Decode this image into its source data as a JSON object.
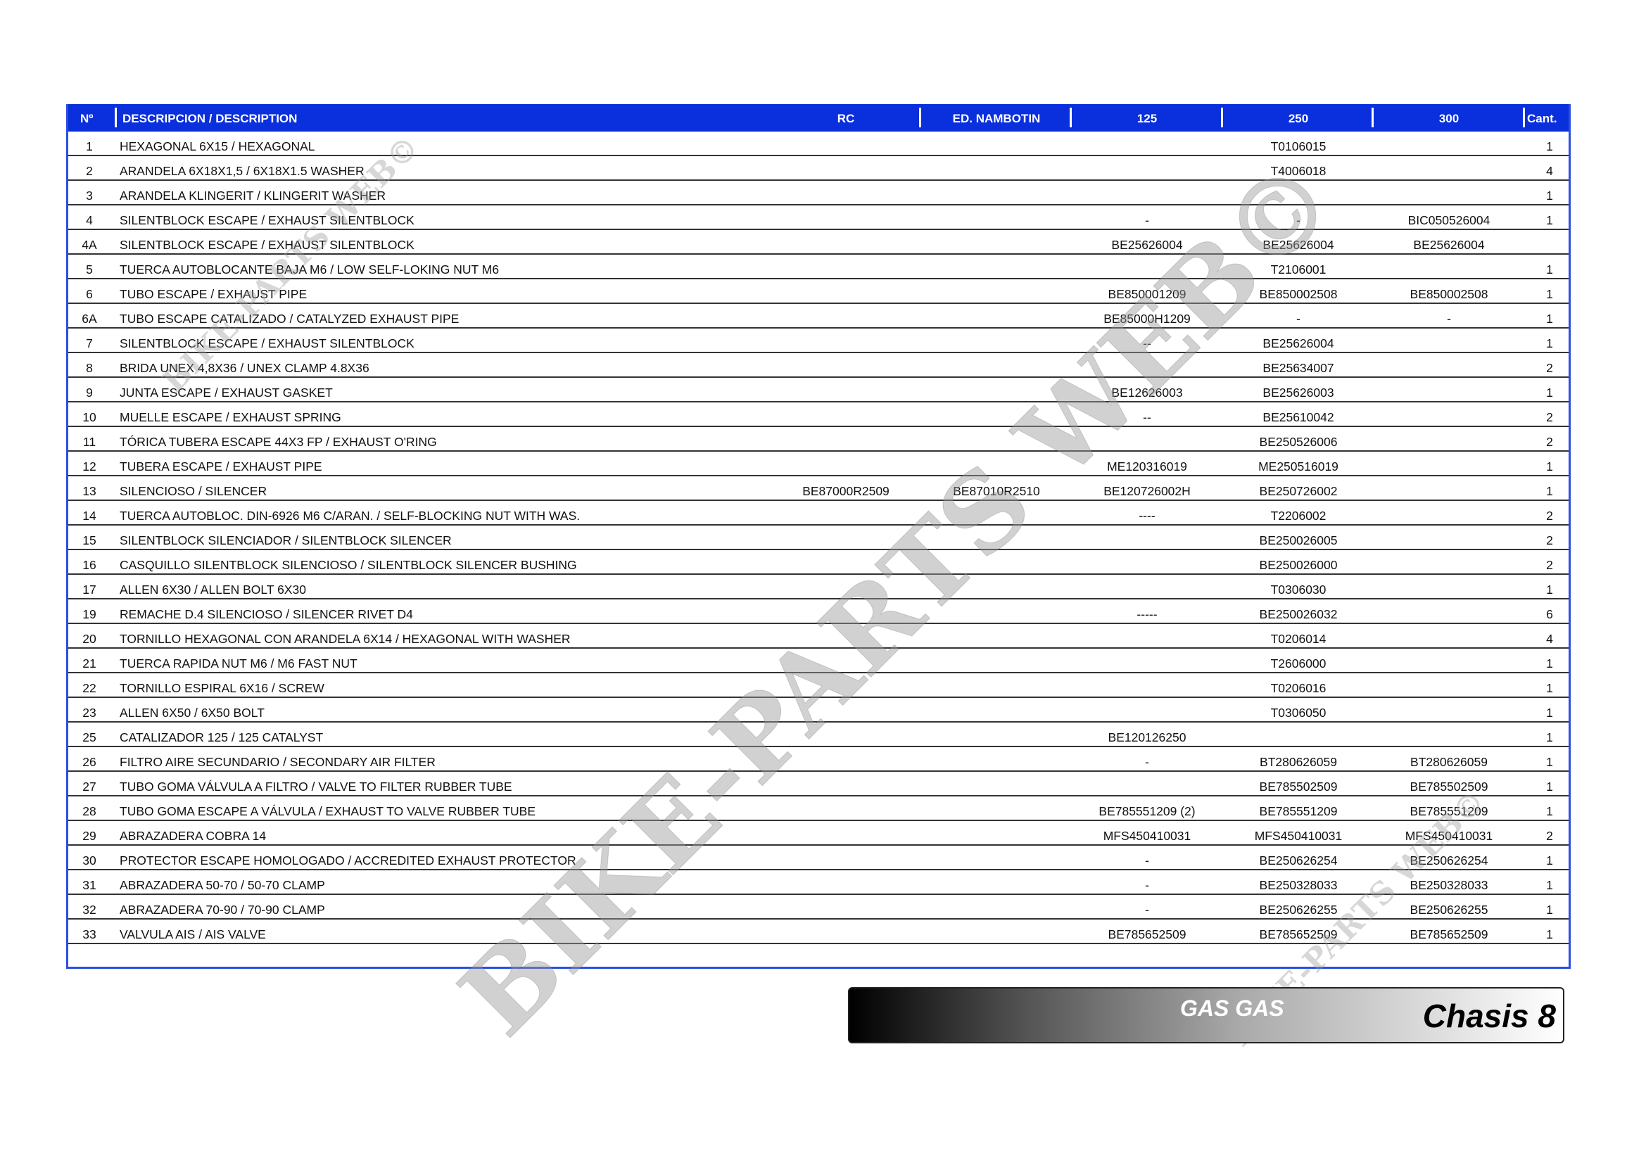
{
  "headers": {
    "no": "Nº",
    "description": "DESCRIPCION / DESCRIPTION",
    "rc": "RC",
    "ed": "ED. NAMBOTIN",
    "c125": "125",
    "c250": "250",
    "c300": "300",
    "qty": "Cant."
  },
  "rows": [
    {
      "no": "1",
      "desc": "HEXAGONAL 6X15 / HEXAGONAL",
      "rc": "",
      "ed": "",
      "c125": "",
      "c250": "T0106015",
      "c300": "",
      "qty": "1"
    },
    {
      "no": "2",
      "desc": "ARANDELA 6X18X1,5 / 6X18X1.5 WASHER",
      "rc": "",
      "ed": "",
      "c125": "",
      "c250": "T4006018",
      "c300": "",
      "qty": "4"
    },
    {
      "no": "3",
      "desc": "ARANDELA KLINGERIT / KLINGERIT WASHER",
      "rc": "",
      "ed": "",
      "c125": "",
      "c250": "",
      "c300": "",
      "qty": "1"
    },
    {
      "no": "4",
      "desc": "SILENTBLOCK ESCAPE / EXHAUST SILENTBLOCK",
      "rc": "",
      "ed": "",
      "c125": "-",
      "c250": "-",
      "c300": "BIC050526004",
      "qty": "1"
    },
    {
      "no": "4A",
      "desc": "SILENTBLOCK ESCAPE / EXHAUST SILENTBLOCK",
      "rc": "",
      "ed": "",
      "c125": "BE25626004",
      "c250": "BE25626004",
      "c300": "BE25626004",
      "qty": ""
    },
    {
      "no": "5",
      "desc": "TUERCA AUTOBLOCANTE BAJA M6 / LOW SELF-LOKING NUT M6",
      "rc": "",
      "ed": "",
      "c125": "",
      "c250": "T2106001",
      "c300": "",
      "qty": "1"
    },
    {
      "no": "6",
      "desc": "TUBO ESCAPE / EXHAUST PIPE",
      "rc": "",
      "ed": "",
      "c125": "BE850001209",
      "c250": "BE850002508",
      "c300": "BE850002508",
      "qty": "1"
    },
    {
      "no": "6A",
      "desc": "TUBO ESCAPE CATALIZADO / CATALYZED EXHAUST PIPE",
      "rc": "",
      "ed": "",
      "c125": "BE85000H1209",
      "c250": "-",
      "c300": "-",
      "qty": "1"
    },
    {
      "no": "7",
      "desc": "SILENTBLOCK ESCAPE / EXHAUST SILENTBLOCK",
      "rc": "",
      "ed": "",
      "c125": "--",
      "c250": "BE25626004",
      "c300": "",
      "qty": "1"
    },
    {
      "no": "8",
      "desc": "BRIDA UNEX 4,8X36 / UNEX CLAMP 4.8X36",
      "rc": "",
      "ed": "",
      "c125": "",
      "c250": "BE25634007",
      "c300": "",
      "qty": "2"
    },
    {
      "no": "9",
      "desc": "JUNTA ESCAPE / EXHAUST GASKET",
      "rc": "",
      "ed": "",
      "c125": "BE12626003",
      "c250": "BE25626003",
      "c300": "",
      "qty": "1"
    },
    {
      "no": "10",
      "desc": "MUELLE ESCAPE / EXHAUST SPRING",
      "rc": "",
      "ed": "",
      "c125": "--",
      "c250": "BE25610042",
      "c300": "",
      "qty": "2"
    },
    {
      "no": "11",
      "desc": "TÓRICA TUBERA ESCAPE 44X3 FP / EXHAUST O'RING",
      "rc": "",
      "ed": "",
      "c125": "",
      "c250": "BE250526006",
      "c300": "",
      "qty": "2"
    },
    {
      "no": "12",
      "desc": "TUBERA ESCAPE / EXHAUST PIPE",
      "rc": "",
      "ed": "",
      "c125": "ME120316019",
      "c250": "ME250516019",
      "c300": "",
      "qty": "1"
    },
    {
      "no": "13",
      "desc": "SILENCIOSO / SILENCER",
      "rc": "BE87000R2509",
      "ed": "BE87010R2510",
      "c125": "BE120726002H",
      "c250": "BE250726002",
      "c300": "",
      "qty": "1"
    },
    {
      "no": "14",
      "desc": "TUERCA AUTOBLOC. DIN-6926 M6 C/ARAN. / SELF-BLOCKING NUT WITH WAS.",
      "rc": "",
      "ed": "",
      "c125": "----",
      "c250": "T2206002",
      "c300": "",
      "qty": "2"
    },
    {
      "no": "15",
      "desc": "SILENTBLOCK SILENCIADOR / SILENTBLOCK SILENCER",
      "rc": "",
      "ed": "",
      "c125": "",
      "c250": "BE250026005",
      "c300": "",
      "qty": "2"
    },
    {
      "no": "16",
      "desc": "CASQUILLO SILENTBLOCK SILENCIOSO / SILENTBLOCK SILENCER BUSHING",
      "rc": "",
      "ed": "",
      "c125": "",
      "c250": "BE250026000",
      "c300": "",
      "qty": "2"
    },
    {
      "no": "17",
      "desc": "ALLEN 6X30 / ALLEN BOLT 6X30",
      "rc": "",
      "ed": "",
      "c125": "",
      "c250": "T0306030",
      "c300": "",
      "qty": "1"
    },
    {
      "no": "19",
      "desc": "REMACHE D.4 SILENCIOSO / SILENCER RIVET D4",
      "rc": "",
      "ed": "",
      "c125": "-----",
      "c250": "BE250026032",
      "c300": "",
      "qty": "6"
    },
    {
      "no": "20",
      "desc": "TORNILLO HEXAGONAL CON ARANDELA 6X14 / HEXAGONAL WITH WASHER",
      "rc": "",
      "ed": "",
      "c125": "",
      "c250": "T0206014",
      "c300": "",
      "qty": "4"
    },
    {
      "no": "21",
      "desc": "TUERCA RAPIDA NUT M6 / M6 FAST NUT",
      "rc": "",
      "ed": "",
      "c125": "",
      "c250": "T2606000",
      "c300": "",
      "qty": "1"
    },
    {
      "no": "22",
      "desc": "TORNILLO ESPIRAL 6X16 / SCREW",
      "rc": "",
      "ed": "",
      "c125": "",
      "c250": "T0206016",
      "c300": "",
      "qty": "1"
    },
    {
      "no": "23",
      "desc": "ALLEN 6X50 / 6X50 BOLT",
      "rc": "",
      "ed": "",
      "c125": "",
      "c250": "T0306050",
      "c300": "",
      "qty": "1"
    },
    {
      "no": "25",
      "desc": "CATALIZADOR 125 / 125 CATALYST",
      "rc": "",
      "ed": "",
      "c125": "BE120126250",
      "c250": "",
      "c300": "",
      "qty": "1"
    },
    {
      "no": "26",
      "desc": "FILTRO AIRE SECUNDARIO / SECONDARY AIR FILTER",
      "rc": "",
      "ed": "",
      "c125": "-",
      "c250": "BT280626059",
      "c300": "BT280626059",
      "qty": "1"
    },
    {
      "no": "27",
      "desc": "TUBO GOMA VÁLVULA A FILTRO / VALVE TO FILTER RUBBER TUBE",
      "rc": "",
      "ed": "",
      "c125": "",
      "c250": "BE785502509",
      "c300": "BE785502509",
      "qty": "1"
    },
    {
      "no": "28",
      "desc": "TUBO GOMA ESCAPE A VÁLVULA / EXHAUST TO VALVE RUBBER TUBE",
      "rc": "",
      "ed": "",
      "c125": "BE785551209  (2)",
      "c250": "BE785551209",
      "c300": "BE785551209",
      "qty": "1"
    },
    {
      "no": "29",
      "desc": "ABRAZADERA COBRA 14",
      "rc": "",
      "ed": "",
      "c125": "MFS450410031",
      "c250": "MFS450410031",
      "c300": "MFS450410031",
      "qty": "2"
    },
    {
      "no": "30",
      "desc": "PROTECTOR ESCAPE HOMOLOGADO / ACCREDITED EXHAUST PROTECTOR",
      "rc": "",
      "ed": "",
      "c125": "-",
      "c250": "BE250626254",
      "c300": "BE250626254",
      "qty": "1"
    },
    {
      "no": "31",
      "desc": "ABRAZADERA 50-70 / 50-70 CLAMP",
      "rc": "",
      "ed": "",
      "c125": "-",
      "c250": "BE250328033",
      "c300": "BE250328033",
      "qty": "1"
    },
    {
      "no": "32",
      "desc": "ABRAZADERA 70-90 / 70-90 CLAMP",
      "rc": "",
      "ed": "",
      "c125": "-",
      "c250": "BE250626255",
      "c300": "BE250626255",
      "qty": "1"
    },
    {
      "no": "33",
      "desc": "VALVULA AIS / AIS VALVE",
      "rc": "",
      "ed": "",
      "c125": "BE785652509",
      "c250": "BE785652509",
      "c300": "BE785652509",
      "qty": "1"
    }
  ],
  "footer": {
    "brand": "GAS GAS",
    "section": "Chasis 8"
  },
  "watermark": {
    "text": "BIKE-PARTS WEB©"
  },
  "colors": {
    "header_bg": "#0a2fdc",
    "header_text": "#ffffff",
    "row_line": "#333333"
  }
}
